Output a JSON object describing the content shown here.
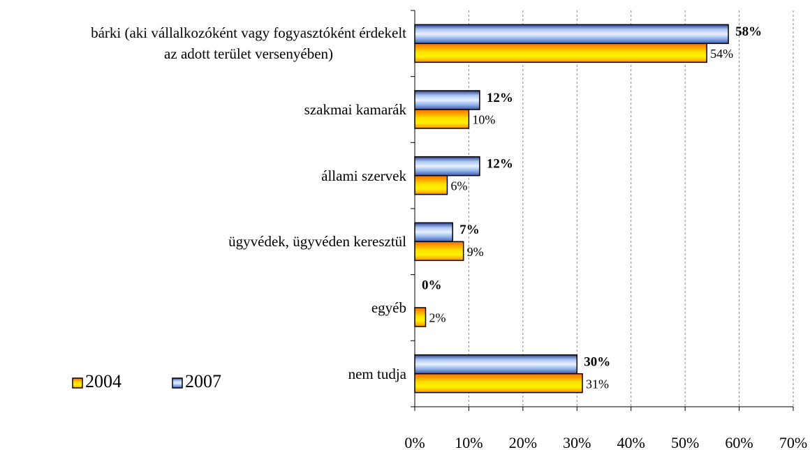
{
  "chart_data": {
    "type": "bar",
    "orientation": "horizontal",
    "categories": [
      "bárki (aki vállalkozóként vagy fogyasztóként érdekelt\naz adott terület versenyében)",
      "szakmai kamarák",
      "állami szervek",
      "ügyvédek, ügyvéden keresztül",
      "egyéb",
      "nem tudja"
    ],
    "series": [
      {
        "name": "2007",
        "color": "#6f9be0",
        "values": [
          58,
          12,
          12,
          7,
          0,
          30
        ],
        "value_labels": [
          "58%",
          "12%",
          "12%",
          "7%",
          "0%",
          "30%"
        ]
      },
      {
        "name": "2004",
        "color": "#ffd000",
        "values": [
          54,
          10,
          6,
          9,
          2,
          31
        ],
        "value_labels": [
          "54%",
          "10%",
          "6%",
          "9%",
          "2%",
          "31%"
        ]
      }
    ],
    "xlim": [
      0,
      70
    ],
    "xticks": [
      {
        "value": 0,
        "label": "0%"
      },
      {
        "value": 10,
        "label": "10%"
      },
      {
        "value": 20,
        "label": "20%"
      },
      {
        "value": 30,
        "label": "30%"
      },
      {
        "value": 40,
        "label": "40%"
      },
      {
        "value": 50,
        "label": "50%"
      },
      {
        "value": 60,
        "label": "60%"
      },
      {
        "value": 70,
        "label": "70%"
      }
    ],
    "grid": true,
    "legend": "lower left"
  }
}
